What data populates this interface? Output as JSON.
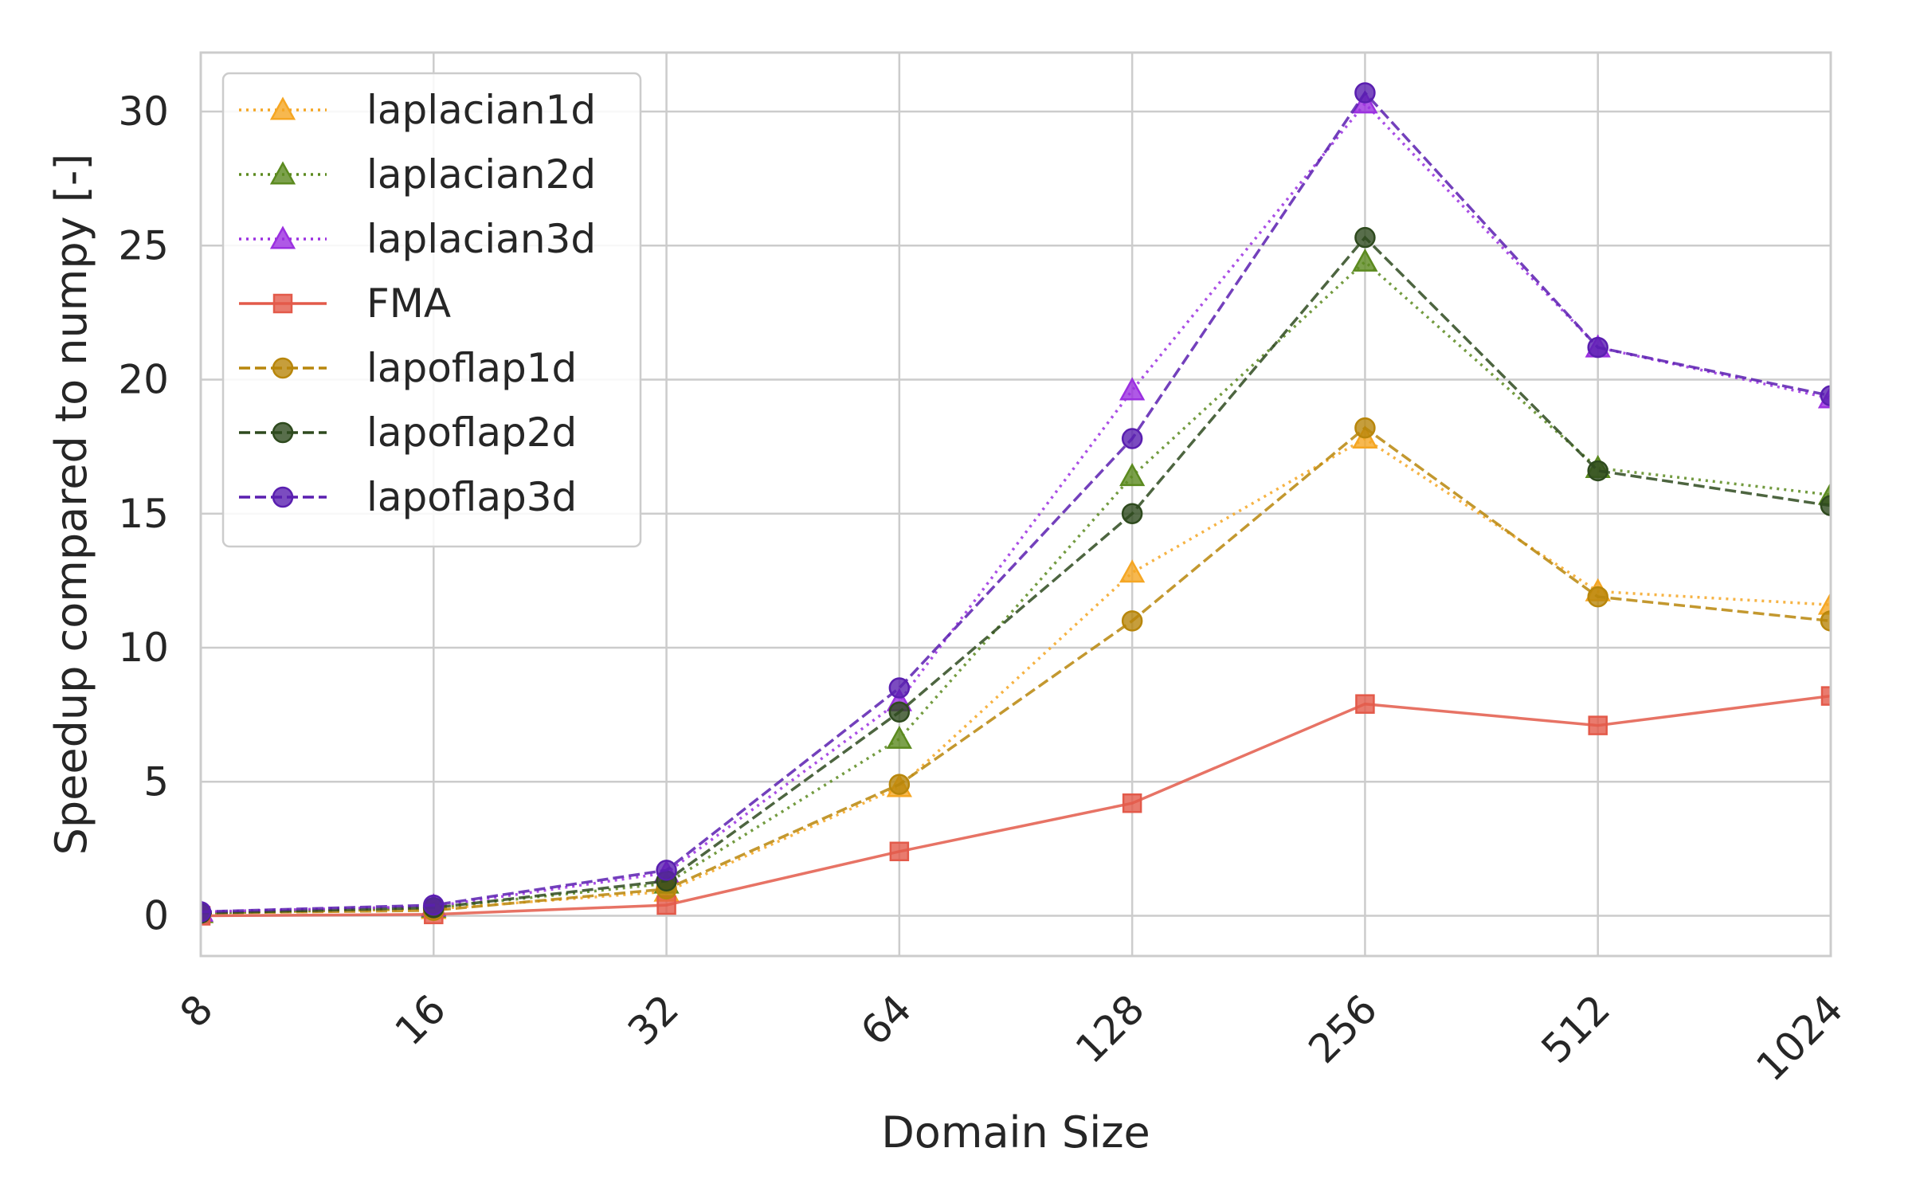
{
  "chart_data": {
    "type": "line",
    "title": "",
    "xlabel": "Domain Size",
    "ylabel": "Speedup compared to numpy [-]",
    "x_scale": "log2",
    "x": [
      8,
      16,
      32,
      64,
      128,
      256,
      512,
      1024
    ],
    "x_tick_labels": [
      "8",
      "16",
      "32",
      "64",
      "128",
      "256",
      "512",
      "1024"
    ],
    "ylim": [
      -1.5,
      32.2
    ],
    "y_ticks": [
      0,
      5,
      10,
      15,
      20,
      25,
      30
    ],
    "y_tick_labels": [
      "0",
      "5",
      "10",
      "15",
      "20",
      "25",
      "30"
    ],
    "grid": true,
    "legend_position": "upper left",
    "series": [
      {
        "name": "laplacian1d",
        "color": "#f5a623",
        "dash": "dotted",
        "marker": "triangle",
        "values": [
          0.1,
          0.25,
          0.9,
          4.8,
          12.8,
          17.8,
          12.1,
          11.6
        ]
      },
      {
        "name": "laplacian2d",
        "color": "#5b8a1f",
        "dash": "dotted",
        "marker": "triangle",
        "values": [
          0.1,
          0.3,
          1.2,
          6.6,
          16.4,
          24.4,
          16.7,
          15.7
        ]
      },
      {
        "name": "laplacian3d",
        "color": "#9b30e0",
        "dash": "dotted",
        "marker": "triangle",
        "values": [
          0.15,
          0.35,
          1.6,
          8.0,
          19.6,
          30.3,
          21.2,
          19.3
        ]
      },
      {
        "name": "FMA",
        "color": "#e35a4a",
        "dash": "solid",
        "marker": "square",
        "values": [
          0.0,
          0.05,
          0.4,
          2.4,
          4.2,
          7.9,
          7.1,
          8.2
        ]
      },
      {
        "name": "lapoflap1d",
        "color": "#b8860b",
        "dash": "dashed",
        "marker": "circle",
        "values": [
          0.1,
          0.2,
          1.0,
          4.9,
          11.0,
          18.2,
          11.9,
          11.0
        ]
      },
      {
        "name": "lapoflap2d",
        "color": "#2e4a1e",
        "dash": "dashed",
        "marker": "circle",
        "values": [
          0.1,
          0.3,
          1.3,
          7.6,
          15.0,
          25.3,
          16.6,
          15.3
        ]
      },
      {
        "name": "lapoflap3d",
        "color": "#5a1fb0",
        "dash": "dashed",
        "marker": "circle",
        "values": [
          0.15,
          0.4,
          1.7,
          8.5,
          17.8,
          30.7,
          21.2,
          19.4
        ]
      }
    ]
  }
}
